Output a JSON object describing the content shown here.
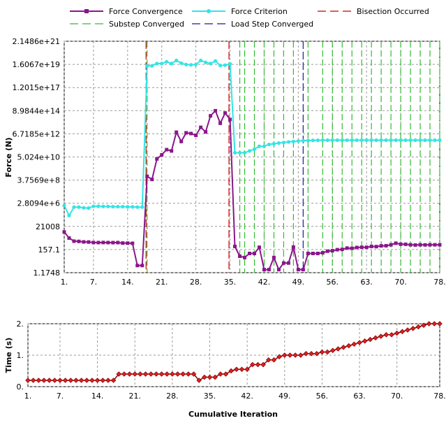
{
  "chart_data": [
    {
      "type": "line",
      "title": "",
      "xlabel": "",
      "ylabel": "Force (N)",
      "yscale": "log",
      "ylim": [
        0.8,
        3e+22
      ],
      "xlim": [
        1,
        78
      ],
      "x_ticks": [
        1,
        7,
        14,
        21,
        28,
        35,
        42,
        49,
        56,
        63,
        70,
        78
      ],
      "x_tick_labels": [
        "1.",
        "7.",
        "14.",
        "21.",
        "28.",
        "35.",
        "42.",
        "49.",
        "56.",
        "63.",
        "70.",
        "78."
      ],
      "y_tick_labels": [
        "2.1486e+21",
        "1.6067e+19",
        "1.2015e+17",
        "8.9844e+14",
        "6.7185e+12",
        "5.024e+10",
        "3.7569e+8",
        "2.8094e+6",
        "21008",
        "157.1",
        "1.1748"
      ],
      "grid": true,
      "legend_position": "top",
      "legend": [
        {
          "label": "Force Convergence",
          "color": "#8b168b",
          "style": "line-marker"
        },
        {
          "label": "Force Criterion",
          "color": "#33e5e5",
          "style": "line-marker"
        },
        {
          "label": "Bisection Occurred",
          "color": "#c00000",
          "style": "dashed"
        },
        {
          "label": "Substep Converged",
          "color": "#33bb33",
          "style": "dashed"
        },
        {
          "label": "Load Step Converged",
          "color": "#1a1a99",
          "style": "dashed"
        }
      ],
      "series": [
        {
          "name": "Force Convergence",
          "color": "#8b168b",
          "x": [
            1,
            2,
            3,
            4,
            5,
            6,
            7,
            8,
            9,
            10,
            11,
            12,
            13,
            14,
            15,
            16,
            17,
            18,
            19,
            20,
            21,
            22,
            23,
            24,
            25,
            26,
            27,
            28,
            29,
            30,
            31,
            32,
            33,
            34,
            35,
            36,
            37,
            38,
            39,
            40,
            41,
            42,
            43,
            44,
            45,
            46,
            47,
            48,
            49,
            50,
            51,
            52,
            53,
            54,
            55,
            56,
            57,
            58,
            59,
            60,
            61,
            62,
            63,
            64,
            65,
            66,
            67,
            68,
            69,
            70,
            71,
            72,
            73,
            74,
            75,
            76,
            77,
            78
          ],
          "y": [
            7500,
            1900,
            950,
            900,
            800,
            780,
            700,
            690,
            700,
            690,
            680,
            690,
            620,
            610,
            590,
            4,
            4,
            2000000000.0,
            1000000000.0,
            100000000000.0,
            250000000000.0,
            800000000000.0,
            600000000000.0,
            40000000000000.0,
            5000000000000.0,
            35000000000000.0,
            30000000000000.0,
            20000000000000.0,
            120000000000000.0,
            43000000000000.0,
            1600000000000000.0,
            5000000000000000.0,
            300000000000000.0,
            3000000000000000.0,
            700000000000000.0,
            290,
            32,
            24,
            60,
            60,
            240,
            1.6,
            1.6,
            24,
            1.6,
            7,
            7,
            250,
            1.6,
            1.6,
            60,
            60,
            60,
            70,
            100,
            110,
            140,
            150,
            200,
            190,
            230,
            240,
            240,
            290,
            280,
            330,
            340,
            420,
            600,
            480,
            470,
            420,
            400,
            420,
            410,
            420,
            420,
            420
          ]
        },
        {
          "name": "Force Criterion",
          "color": "#33e5e5",
          "x": [
            1,
            2,
            3,
            4,
            5,
            6,
            7,
            8,
            9,
            10,
            11,
            12,
            13,
            14,
            15,
            16,
            17,
            18,
            19,
            20,
            21,
            22,
            23,
            24,
            25,
            26,
            27,
            28,
            29,
            30,
            31,
            32,
            33,
            34,
            35,
            36,
            37,
            38,
            39,
            40,
            41,
            42,
            43,
            44,
            45,
            46,
            47,
            48,
            49,
            50,
            51,
            52,
            53,
            54,
            55,
            56,
            57,
            58,
            59,
            60,
            61,
            62,
            63,
            64,
            65,
            66,
            67,
            68,
            69,
            70,
            71,
            72,
            73,
            74,
            75,
            76,
            77,
            78
          ],
          "y": [
            2800000.0,
            300000.0,
            2000000.0,
            2000000.0,
            1700000.0,
            1600000.0,
            2400000.0,
            2400000.0,
            2300000.0,
            2300000.0,
            2200000.0,
            2200000.0,
            2200000.0,
            2100000.0,
            2100000.0,
            2000000.0,
            2000000.0,
            1.2e+20,
            1.2e+20,
            2e+20,
            2e+20,
            3e+20,
            2e+20,
            4e+20,
            2.2e+20,
            1.6e+20,
            1.5e+20,
            1.6e+20,
            4e+20,
            2.6e+20,
            2e+20,
            3.6e+20,
            1.3e+20,
            1.4e+20,
            1.9e+20,
            400000000000.0,
            400000000000.0,
            400000000000.0,
            600000000000.0,
            900000000000.0,
            1700000000000.0,
            1700000000000.0,
            2600000000000.0,
            3000000000000.0,
            3500000000000.0,
            4000000000000.0,
            4500000000000.0,
            5000000000000.0,
            5500000000000.0,
            6000000000000.0,
            6200000000000.0,
            6500000000000.0,
            6600000000000.0,
            6700000000000.0,
            6700000000000.0,
            6700000000000.0,
            6700000000000.0,
            6700000000000.0,
            6700000000000.0,
            6700000000000.0,
            6700000000000.0,
            6700000000000.0,
            6700000000000.0,
            6700000000000.0,
            6700000000000.0,
            6700000000000.0,
            6700000000000.0,
            6700000000000.0,
            6700000000000.0,
            6700000000000.0,
            6700000000000.0,
            6700000000000.0,
            6700000000000.0,
            6700000000000.0,
            6700000000000.0,
            6700000000000.0,
            6700000000000.0,
            6700000000000.0
          ]
        }
      ],
      "vlines": [
        {
          "name": "Bisection Occurred",
          "color": "#c00000",
          "x": [
            18,
            35
          ]
        },
        {
          "name": "Substep Converged",
          "color": "#33bb33",
          "x": [
            18,
            37,
            38,
            40,
            42,
            44,
            46,
            48,
            51,
            54,
            56,
            58,
            60,
            62,
            64,
            66,
            68,
            70,
            72,
            74,
            76,
            78
          ]
        },
        {
          "name": "Load Step Converged",
          "color": "#1a1a99",
          "x": [
            50
          ]
        }
      ]
    },
    {
      "type": "line",
      "title": "",
      "xlabel": "Cumulative Iteration",
      "ylabel": "Time (s)",
      "ylim": [
        0,
        2
      ],
      "xlim": [
        1,
        78
      ],
      "x_ticks": [
        1,
        7,
        14,
        21,
        28,
        35,
        42,
        49,
        56,
        63,
        70,
        78
      ],
      "x_tick_labels": [
        "1.",
        "7.",
        "14.",
        "21.",
        "28.",
        "35.",
        "42.",
        "49.",
        "56.",
        "63.",
        "70.",
        "78."
      ],
      "y_ticks": [
        0,
        1,
        2
      ],
      "y_tick_labels": [
        "0.",
        "1.",
        "2."
      ],
      "grid": true,
      "series": [
        {
          "name": "Time",
          "color": "#8b0000",
          "marker_fill": "#dd2222",
          "x": [
            1,
            2,
            3,
            4,
            5,
            6,
            7,
            8,
            9,
            10,
            11,
            12,
            13,
            14,
            15,
            16,
            17,
            18,
            19,
            20,
            21,
            22,
            23,
            24,
            25,
            26,
            27,
            28,
            29,
            30,
            31,
            32,
            33,
            34,
            35,
            36,
            37,
            38,
            39,
            40,
            41,
            42,
            43,
            44,
            45,
            46,
            47,
            48,
            49,
            50,
            51,
            52,
            53,
            54,
            55,
            56,
            57,
            58,
            59,
            60,
            61,
            62,
            63,
            64,
            65,
            66,
            67,
            68,
            69,
            70,
            71,
            72,
            73,
            74,
            75,
            76,
            77,
            78
          ],
          "y": [
            0.2,
            0.2,
            0.2,
            0.2,
            0.2,
            0.2,
            0.2,
            0.2,
            0.2,
            0.2,
            0.2,
            0.2,
            0.2,
            0.2,
            0.2,
            0.2,
            0.2,
            0.4,
            0.4,
            0.4,
            0.4,
            0.4,
            0.4,
            0.4,
            0.4,
            0.4,
            0.4,
            0.4,
            0.4,
            0.4,
            0.4,
            0.4,
            0.2,
            0.3,
            0.3,
            0.3,
            0.4,
            0.4,
            0.5,
            0.55,
            0.55,
            0.55,
            0.7,
            0.7,
            0.7,
            0.85,
            0.85,
            0.95,
            1.0,
            1.0,
            1.0,
            1.0,
            1.05,
            1.05,
            1.05,
            1.1,
            1.1,
            1.15,
            1.2,
            1.25,
            1.3,
            1.35,
            1.4,
            1.45,
            1.5,
            1.55,
            1.6,
            1.65,
            1.65,
            1.7,
            1.75,
            1.8,
            1.85,
            1.9,
            1.95,
            2.0,
            2.0,
            2.0
          ]
        }
      ]
    }
  ]
}
